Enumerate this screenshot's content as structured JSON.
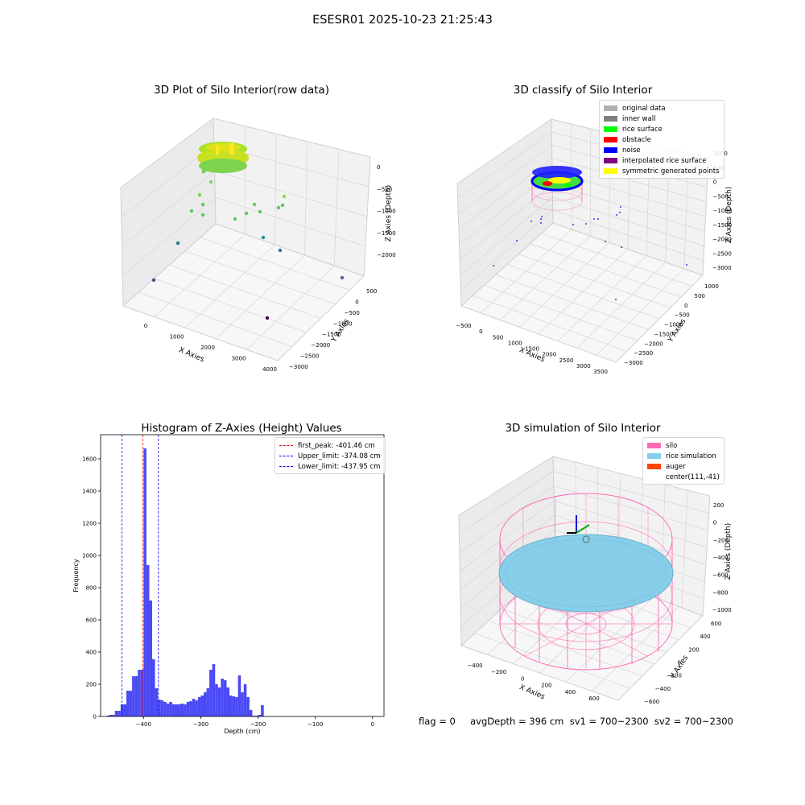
{
  "suptitle": "ESESR01 2025-10-23 21:25:43",
  "footer": "flag = 0     avgDepth = 396 cm  sv1 = 700~2300  sv2 = 700~2300",
  "chart_data": [
    {
      "type": "scatter",
      "title": "3D Plot of Silo Interior(row data)",
      "xlabel": "X Axies",
      "ylabel": "Y Axies",
      "zlabel": "Z Axies (Depth)",
      "x_ticks": [
        "0",
        "1000",
        "2000",
        "3000",
        "4000"
      ],
      "y_ticks": [
        "500",
        "0",
        "−500",
        "−1000",
        "−1500",
        "−2000",
        "−2500",
        "−3000"
      ],
      "z_ticks": [
        "0",
        "−500",
        "−1000",
        "−1500",
        "−2000"
      ],
      "colormap": "viridis (by depth)"
    },
    {
      "type": "scatter",
      "title": "3D classify of Silo Interior",
      "xlabel": "X Axies",
      "ylabel": "Y Axies",
      "zlabel": "Z Axies (Depth)",
      "x_ticks": [
        "−500",
        "0",
        "500",
        "1000",
        "1500",
        "2000",
        "2500",
        "3000",
        "3500"
      ],
      "y_ticks": [
        "1000",
        "500",
        "0",
        "−500",
        "−1000",
        "−1500",
        "−2000",
        "−2500",
        "−3000"
      ],
      "z_ticks": [
        "1000",
        "500",
        "0",
        "−500",
        "−1000",
        "−1500",
        "−2000",
        "−2500",
        "−3000"
      ],
      "legend": [
        {
          "label": "original data",
          "color": "#b0b0b0"
        },
        {
          "label": "inner wall",
          "color": "#808080"
        },
        {
          "label": "rice surface",
          "color": "#00ff00"
        },
        {
          "label": "obstacle",
          "color": "#ff0000"
        },
        {
          "label": "noise",
          "color": "#0000ff"
        },
        {
          "label": "interpolated rice surface",
          "color": "#800080"
        },
        {
          "label": "symmetric generated points",
          "color": "#ffff00"
        }
      ]
    },
    {
      "type": "bar",
      "title": "Histogram of Z-Axies (Height) Values",
      "xlabel": "Depth (cm)",
      "ylabel": "Frequency",
      "xlim": [
        -475,
        20
      ],
      "ylim": [
        0,
        1750
      ],
      "x_ticks": [
        -400,
        -300,
        -200,
        -100,
        0
      ],
      "y_ticks": [
        0,
        200,
        400,
        600,
        800,
        1000,
        1200,
        1400,
        1600
      ],
      "bar_color": "#4a4af5",
      "bin_width": 5,
      "bin_starts": [
        -465,
        -460,
        -455,
        -450,
        -445,
        -440,
        -435,
        -430,
        -425,
        -420,
        -415,
        -410,
        -405,
        -400,
        -395,
        -390,
        -385,
        -380,
        -375,
        -370,
        -365,
        -360,
        -355,
        -350,
        -345,
        -340,
        -335,
        -330,
        -325,
        -320,
        -315,
        -310,
        -305,
        -300,
        -295,
        -290,
        -285,
        -280,
        -275,
        -270,
        -265,
        -260,
        -255,
        -250,
        -245,
        -240,
        -235,
        -230,
        -225,
        -220,
        -215,
        -210,
        -205,
        -200,
        -195,
        -190,
        -185,
        -180,
        -175,
        -170,
        -165,
        -160,
        -155,
        -150,
        -145,
        -140,
        -135,
        -130,
        -125,
        -120,
        -115,
        -110,
        -105,
        -100,
        -95,
        -90,
        -85,
        -80,
        -75,
        -70,
        -65,
        -60,
        -55,
        -50,
        -45,
        -40,
        -35,
        -30,
        -25,
        -20,
        -15,
        -10,
        -5,
        0
      ],
      "values": [
        5,
        10,
        10,
        35,
        35,
        75,
        75,
        160,
        160,
        250,
        250,
        290,
        290,
        1665,
        940,
        720,
        355,
        175,
        105,
        100,
        90,
        80,
        90,
        75,
        75,
        75,
        80,
        75,
        90,
        95,
        110,
        100,
        120,
        130,
        150,
        175,
        290,
        325,
        200,
        180,
        235,
        225,
        180,
        130,
        125,
        120,
        255,
        150,
        200,
        120,
        40,
        5,
        5,
        10,
        70,
        0,
        0,
        0,
        0,
        0,
        0,
        0,
        0,
        0,
        0,
        0,
        0,
        0,
        0,
        0,
        0,
        0,
        0,
        0,
        0,
        0,
        0,
        0,
        0,
        0,
        0,
        0,
        0,
        0,
        0,
        0,
        0,
        0,
        0,
        0,
        0,
        0,
        0,
        0
      ],
      "vlines": [
        {
          "x": -401.46,
          "label": "first_peak: -401.46 cm",
          "color": "#ff0000"
        },
        {
          "x": -374.08,
          "label": "Upper_limit: -374.08 cm",
          "color": "#0000ff"
        },
        {
          "x": -437.95,
          "label": "Lower_limit: -437.95 cm",
          "color": "#0000ff"
        }
      ]
    },
    {
      "type": "scatter",
      "title": "3D simulation of Silo Interior",
      "xlabel": "X Axies",
      "ylabel": "Y Axies",
      "zlabel": "Z Axies (Depth)",
      "x_ticks": [
        "−400",
        "−200",
        "0",
        "200",
        "400",
        "600"
      ],
      "y_ticks": [
        "600",
        "400",
        "200",
        "0",
        "−200",
        "−400",
        "−600"
      ],
      "z_ticks": [
        "200",
        "0",
        "−200",
        "−400",
        "−600",
        "−800",
        "−1000"
      ],
      "legend": [
        {
          "label": "silo",
          "color": "#ff69b4"
        },
        {
          "label": "rice simulation",
          "color": "#87ceeb"
        },
        {
          "label": "auger",
          "color": "#ff4500"
        },
        {
          "label": "center(111,-41)",
          "color": ""
        }
      ]
    }
  ]
}
